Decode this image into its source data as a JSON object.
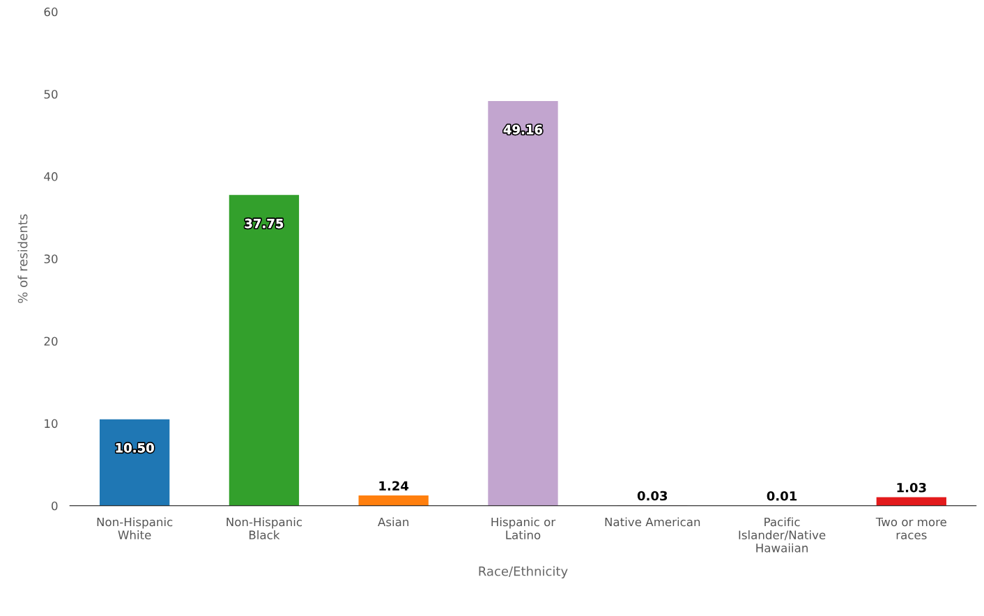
{
  "chart_data": {
    "type": "bar",
    "xlabel": "Race/Ethnicity",
    "ylabel": "% of residents",
    "categories": [
      "Non-Hispanic\nWhite",
      "Non-Hispanic\nBlack",
      "Asian",
      "Hispanic or\nLatino",
      "Native American",
      "Pacific\nIslander/Native\nHawaiian",
      "Two or more\nraces"
    ],
    "values": [
      10.5,
      37.75,
      1.24,
      49.16,
      0.03,
      0.01,
      1.03
    ],
    "value_labels": [
      "10.50",
      "37.75",
      "1.24",
      "49.16",
      "0.03",
      "0.01",
      "1.03"
    ],
    "colors": [
      "#1f77b4",
      "#33a02c",
      "#ff7f0e",
      "#c2a5cf",
      "#8c564b",
      "#ffffff",
      "#e31a1c"
    ],
    "ylim": [
      0,
      60
    ],
    "yticks": [
      0,
      10,
      20,
      30,
      40,
      50,
      60
    ],
    "grid": false
  }
}
